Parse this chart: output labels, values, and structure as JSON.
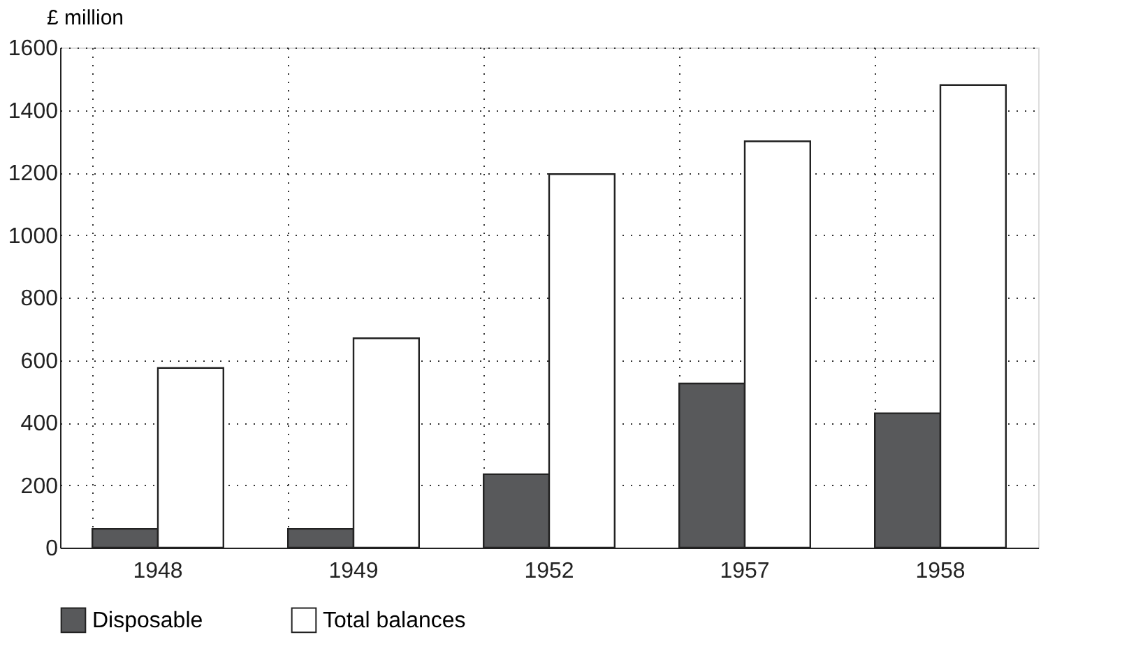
{
  "chart_data": {
    "type": "bar",
    "ylabel": "£ million",
    "categories": [
      "1948",
      "1949",
      "1952",
      "1957",
      "1958"
    ],
    "series": [
      {
        "name": "Disposable",
        "color": "#58595b",
        "values": [
          60,
          60,
          235,
          525,
          430
        ]
      },
      {
        "name": "Total balances",
        "color": "#ffffff",
        "values": [
          575,
          670,
          1195,
          1300,
          1480
        ]
      }
    ],
    "ylim": [
      0,
      1600
    ],
    "yticks": [
      0,
      200,
      400,
      600,
      800,
      1000,
      1200,
      1400,
      1600
    ],
    "grid": true,
    "legend": "bottom"
  }
}
